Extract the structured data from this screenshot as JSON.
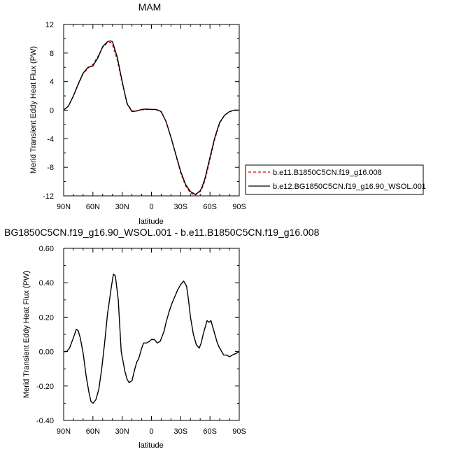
{
  "chart_data": [
    {
      "type": "line",
      "title": "MAM",
      "xlabel": "latitude",
      "ylabel": "Merid Transient Eddy Heat Flux (PW)",
      "xlim": [
        90,
        -90
      ],
      "ylim": [
        -12,
        12
      ],
      "x_ticks": [
        90,
        60,
        30,
        0,
        -30,
        -60,
        -90
      ],
      "x_tick_labels": [
        "90N",
        "60N",
        "30N",
        "0",
        "30S",
        "60S",
        "90S"
      ],
      "y_ticks": [
        -12,
        -8,
        -4,
        0,
        4,
        8,
        12
      ],
      "y_tick_labels": [
        "-12",
        "-8",
        "-4",
        "0",
        "4",
        "8",
        "12"
      ],
      "legend_position": "right",
      "series": [
        {
          "name": "b.e11.B1850C5CN.f19_g16.008",
          "color": "#e00000",
          "dash": true,
          "x": [
            90,
            85,
            80,
            75,
            70,
            65,
            60,
            55,
            50,
            45,
            42,
            40,
            35,
            30,
            25,
            20,
            15,
            10,
            5,
            0,
            -5,
            -10,
            -15,
            -20,
            -25,
            -30,
            -35,
            -40,
            -45,
            -50,
            -52,
            -55,
            -60,
            -65,
            -70,
            -75,
            -80,
            -85,
            -90
          ],
          "y": [
            0.0,
            0.6,
            2.0,
            3.6,
            5.1,
            5.9,
            6.4,
            7.5,
            8.8,
            9.45,
            9.5,
            9.2,
            7.0,
            3.8,
            1.0,
            -0.1,
            -0.1,
            0.05,
            0.1,
            0.1,
            0.05,
            -0.25,
            -1.6,
            -3.8,
            -6.3,
            -8.8,
            -10.6,
            -11.6,
            -11.9,
            -11.4,
            -10.9,
            -9.8,
            -6.9,
            -4.0,
            -1.8,
            -0.7,
            -0.2,
            0.0,
            0.0
          ]
        },
        {
          "name": "b.e12.BG1850C5CN.f19_g16.90_WSOL.001",
          "color": "#000000",
          "dash": false,
          "x": [
            90,
            85,
            80,
            75,
            70,
            65,
            60,
            55,
            50,
            45,
            42,
            40,
            35,
            30,
            25,
            20,
            15,
            10,
            5,
            0,
            -5,
            -10,
            -15,
            -20,
            -25,
            -30,
            -35,
            -40,
            -45,
            -50,
            -52,
            -55,
            -60,
            -65,
            -70,
            -75,
            -80,
            -85,
            -90
          ],
          "y": [
            0.0,
            0.6,
            2.0,
            3.7,
            5.2,
            6.0,
            6.2,
            7.3,
            8.9,
            9.6,
            9.7,
            9.6,
            7.4,
            4.0,
            0.9,
            -0.2,
            -0.1,
            0.1,
            0.15,
            0.1,
            0.1,
            -0.2,
            -1.6,
            -3.8,
            -6.2,
            -8.6,
            -10.4,
            -11.4,
            -11.8,
            -11.3,
            -10.7,
            -9.5,
            -6.6,
            -3.8,
            -1.7,
            -0.7,
            -0.2,
            0.0,
            0.0
          ]
        }
      ]
    },
    {
      "type": "line",
      "title": "BG1850C5CN.f19_g16.90_WSOL.001 - b.e11.B1850C5CN.f19_g16.008",
      "xlabel": "latitude",
      "ylabel": "Merid Transient Eddy Heat Flux (PW)",
      "xlim": [
        90,
        -90
      ],
      "ylim": [
        -0.4,
        0.6
      ],
      "x_ticks": [
        90,
        60,
        30,
        0,
        -30,
        -60,
        -90
      ],
      "x_tick_labels": [
        "90N",
        "60N",
        "30N",
        "0",
        "30S",
        "60S",
        "90S"
      ],
      "y_ticks": [
        -0.4,
        -0.2,
        0.0,
        0.2,
        0.4,
        0.6
      ],
      "y_tick_labels": [
        "-0.40",
        "-0.20",
        "0.00",
        "0.20",
        "0.40",
        "0.60"
      ],
      "series": [
        {
          "color": "#000000",
          "dash": false,
          "x": [
            90,
            87,
            84,
            80,
            77,
            75,
            73,
            70,
            67,
            64,
            62,
            60,
            57,
            54,
            51,
            48,
            45,
            41,
            39,
            37,
            34,
            31,
            27,
            25,
            23,
            20,
            17,
            15,
            13,
            10,
            8,
            5,
            2,
            0,
            -3,
            -6,
            -9,
            -13,
            -15,
            -18,
            -21,
            -24,
            -27,
            -30,
            -33,
            -36,
            -38,
            -40,
            -43,
            -46,
            -49,
            -51,
            -53,
            -55,
            -57,
            -59,
            -61,
            -63,
            -65,
            -67,
            -69,
            -71,
            -74,
            -77,
            -80,
            -83,
            -87,
            -90
          ],
          "y": [
            0.0,
            0.0,
            0.02,
            0.08,
            0.13,
            0.12,
            0.08,
            -0.01,
            -0.14,
            -0.24,
            -0.29,
            -0.3,
            -0.28,
            -0.22,
            -0.1,
            0.05,
            0.22,
            0.38,
            0.45,
            0.44,
            0.3,
            0.0,
            -0.12,
            -0.16,
            -0.18,
            -0.17,
            -0.1,
            -0.06,
            -0.04,
            0.02,
            0.05,
            0.05,
            0.06,
            0.07,
            0.07,
            0.05,
            0.06,
            0.12,
            0.17,
            0.23,
            0.28,
            0.32,
            0.36,
            0.39,
            0.41,
            0.38,
            0.3,
            0.2,
            0.1,
            0.04,
            0.02,
            0.05,
            0.1,
            0.14,
            0.18,
            0.17,
            0.18,
            0.14,
            0.1,
            0.06,
            0.03,
            0.01,
            -0.02,
            -0.02,
            -0.03,
            -0.02,
            -0.01,
            0.0
          ]
        }
      ]
    }
  ]
}
